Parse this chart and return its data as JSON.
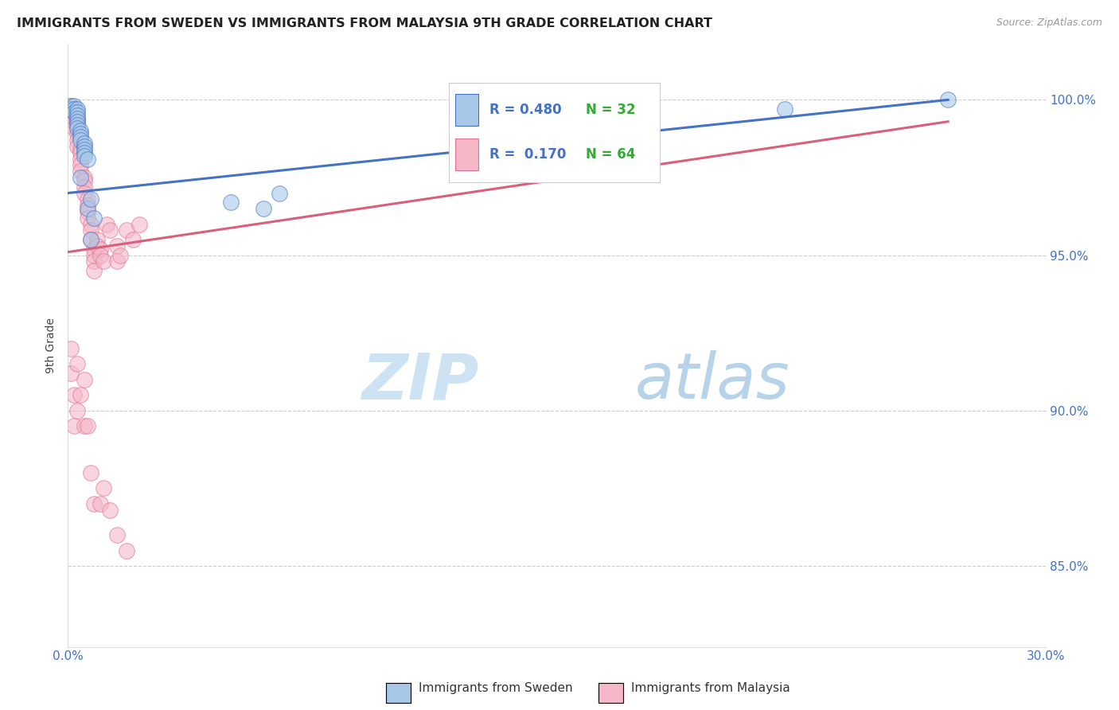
{
  "title": "IMMIGRANTS FROM SWEDEN VS IMMIGRANTS FROM MALAYSIA 9TH GRADE CORRELATION CHART",
  "source": "Source: ZipAtlas.com",
  "ylabel": "9th Grade",
  "ytick_labels": [
    "100.0%",
    "95.0%",
    "90.0%",
    "85.0%"
  ],
  "ytick_values": [
    1.0,
    0.95,
    0.9,
    0.85
  ],
  "xlim": [
    0.0,
    0.3
  ],
  "ylim": [
    0.824,
    1.018
  ],
  "color_sweden": "#a8c8e8",
  "color_malaysia": "#f4b8c8",
  "color_sweden_edge": "#4472C4",
  "color_malaysia_edge": "#e07090",
  "color_sweden_line": "#4472C4",
  "color_malaysia_line": "#d9607a",
  "color_tick_blue": "#4472C4",
  "color_green": "#33aa33",
  "sweden_x": [
    0.001,
    0.001,
    0.002,
    0.002,
    0.002,
    0.003,
    0.003,
    0.003,
    0.003,
    0.003,
    0.003,
    0.003,
    0.004,
    0.004,
    0.004,
    0.004,
    0.004,
    0.005,
    0.005,
    0.005,
    0.005,
    0.005,
    0.006,
    0.006,
    0.007,
    0.007,
    0.008,
    0.05,
    0.06,
    0.065,
    0.22,
    0.27
  ],
  "sweden_y": [
    0.998,
    0.997,
    0.998,
    0.997,
    0.996,
    0.997,
    0.996,
    0.995,
    0.994,
    0.993,
    0.992,
    0.991,
    0.99,
    0.989,
    0.988,
    0.987,
    0.975,
    0.986,
    0.985,
    0.984,
    0.983,
    0.982,
    0.981,
    0.965,
    0.968,
    0.955,
    0.962,
    0.967,
    0.965,
    0.97,
    0.997,
    1.0
  ],
  "malaysia_x": [
    0.001,
    0.001,
    0.001,
    0.001,
    0.002,
    0.002,
    0.002,
    0.002,
    0.003,
    0.003,
    0.003,
    0.003,
    0.003,
    0.003,
    0.004,
    0.004,
    0.004,
    0.004,
    0.004,
    0.005,
    0.005,
    0.005,
    0.005,
    0.006,
    0.006,
    0.006,
    0.006,
    0.007,
    0.007,
    0.007,
    0.008,
    0.008,
    0.008,
    0.008,
    0.009,
    0.009,
    0.01,
    0.01,
    0.011,
    0.012,
    0.013,
    0.015,
    0.015,
    0.016,
    0.018,
    0.02,
    0.022,
    0.001,
    0.001,
    0.002,
    0.002,
    0.003,
    0.003,
    0.004,
    0.005,
    0.005,
    0.006,
    0.007,
    0.008,
    0.01,
    0.011,
    0.013,
    0.015,
    0.018
  ],
  "malaysia_y": [
    0.998,
    0.997,
    0.996,
    0.995,
    0.996,
    0.995,
    0.993,
    0.991,
    0.994,
    0.993,
    0.991,
    0.989,
    0.987,
    0.985,
    0.984,
    0.983,
    0.981,
    0.979,
    0.977,
    0.975,
    0.974,
    0.972,
    0.97,
    0.968,
    0.966,
    0.964,
    0.962,
    0.96,
    0.958,
    0.955,
    0.952,
    0.95,
    0.948,
    0.945,
    0.955,
    0.953,
    0.952,
    0.95,
    0.948,
    0.96,
    0.958,
    0.953,
    0.948,
    0.95,
    0.958,
    0.955,
    0.96,
    0.92,
    0.912,
    0.905,
    0.895,
    0.915,
    0.9,
    0.905,
    0.91,
    0.895,
    0.895,
    0.88,
    0.87,
    0.87,
    0.875,
    0.868,
    0.86,
    0.855
  ],
  "watermark_zip": "ZIP",
  "watermark_atlas": "atlas",
  "background_color": "#ffffff",
  "grid_color": "#cccccc",
  "legend_text_r1": "R = 0.480",
  "legend_text_n1": "N = 32",
  "legend_text_r2": "R =  0.170",
  "legend_text_n2": "N = 64"
}
